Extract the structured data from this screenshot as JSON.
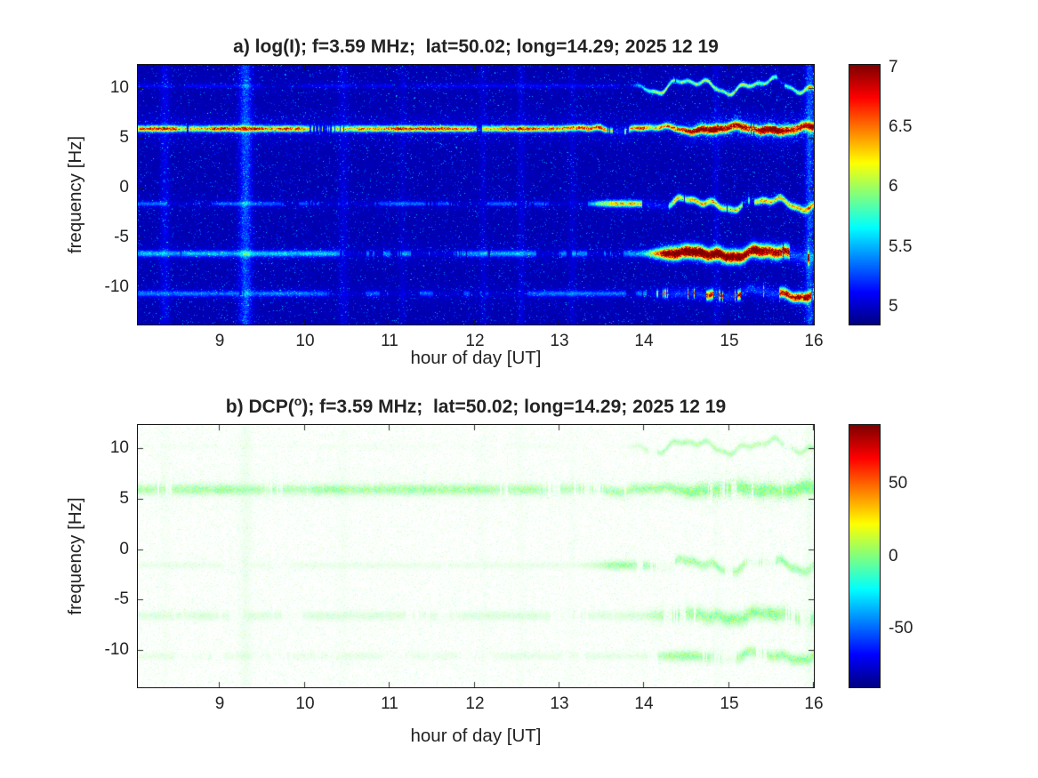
{
  "figure": {
    "kind": "dual-panel radio spectrogram",
    "text_color": "#232323",
    "background": "#ffffff",
    "colormap": "jet"
  },
  "chart_data": [
    {
      "type": "heatmap",
      "panel": "a",
      "title": "a) log(I); f=3.59 MHz;  lat=50.02; long=14.29; 2025 12 19",
      "title_prefix": "a) log(I); f=3.59 MHz;  lat=50.02; long=14.29; 2025 12 19",
      "title_sup": "",
      "title_suffix": "",
      "xlabel": "hour of day [UT]",
      "ylabel": "frequency [Hz]",
      "xlim": [
        8.03,
        16
      ],
      "ylim": [
        -13.7,
        12.3
      ],
      "xticks": [
        9,
        10,
        11,
        12,
        13,
        14,
        15,
        16
      ],
      "yticks": [
        10,
        5,
        0,
        -5,
        -10
      ],
      "grid": false,
      "colormap": "jet",
      "render_mode": "intensity",
      "seed": 20251219,
      "base_value": 4.93,
      "colorbar": {
        "min": 4.85,
        "max": 7.02,
        "ticks": [
          7,
          6.5,
          6,
          5.5,
          5
        ],
        "position": "right"
      },
      "spectral_lines": [
        {
          "f": 5.9,
          "amp": 1.3,
          "amp_late": 1.85,
          "late_start": 14.3,
          "sigma": 0.2,
          "sigma_late": 0.3,
          "wobble": 0.2,
          "wobble_start": 13.0,
          "halo_amp": 0.3,
          "halo_sigma": 0.9,
          "patchiness": 0.12,
          "note": "strong continuous carrier line near +6 Hz, yellow-orange, turns red and wavy after ~14:30 UT"
        },
        {
          "f": 10.2,
          "amp": 0.12,
          "amp_late": 0.85,
          "late_start": 13.7,
          "sigma": 0.13,
          "sigma_late": 0.15,
          "wobble": 0.55,
          "wobble_start": 13.7,
          "halo_amp": 0.06,
          "halo_sigma": 0.5,
          "patchiness": 0.45,
          "note": "faint wavy trace near +10 Hz appearing after ~13:45 UT"
        },
        {
          "f": -1.6,
          "amp": 0.3,
          "amp_late": 1.05,
          "late_start": 13.2,
          "sigma": 0.16,
          "sigma_late": 0.22,
          "wobble": 0.45,
          "wobble_start": 14.0,
          "halo_amp": 0.1,
          "halo_sigma": 0.6,
          "patchiness": 0.5,
          "note": "weak dotted line near -1.5 Hz, strengthens and undulates after ~13 UT"
        },
        {
          "f": -6.6,
          "amp": 0.45,
          "amp_late": 2.05,
          "late_start": 13.9,
          "sigma": 0.22,
          "sigma_late": 0.42,
          "wobble": 0.3,
          "wobble_start": 14.3,
          "halo_amp": 0.12,
          "halo_sigma": 0.8,
          "patchiness": 0.45,
          "note": "dotted line near -6.5 Hz, becomes broad intense red band after ~14 UT"
        },
        {
          "f": -10.6,
          "amp": 0.32,
          "amp_late": 1.75,
          "late_start": 13.9,
          "sigma": 0.2,
          "sigma_late": 0.32,
          "wobble": 0.32,
          "wobble_start": 14.5,
          "halo_amp": 0.1,
          "halo_sigma": 0.7,
          "patchiness": 0.5,
          "note": "faint line near -10.5 Hz, intensifies to red-orange after ~14 UT"
        }
      ],
      "vertical_stripes": [
        {
          "hour": 9.3,
          "amp": 0.5,
          "width": 0.05
        },
        {
          "hour": 8.35,
          "amp": 0.18,
          "width": 0.04
        },
        {
          "hour": 10.45,
          "amp": 0.13,
          "width": 0.04
        },
        {
          "hour": 11.15,
          "amp": 0.08,
          "width": 0.03
        },
        {
          "hour": 12.1,
          "amp": 0.1,
          "width": 0.03
        },
        {
          "hour": 12.55,
          "amp": 0.13,
          "width": 0.03
        },
        {
          "hour": 13.15,
          "amp": 0.1,
          "width": 0.03
        },
        {
          "hour": 14.85,
          "amp": 0.12,
          "width": 0.03
        },
        {
          "hour": 15.95,
          "amp": 0.5,
          "width": 0.035
        }
      ]
    },
    {
      "type": "heatmap",
      "panel": "b",
      "title": "b) DCP(o); f=3.59 MHz;  lat=50.02; long=14.29; 2025 12 19",
      "title_prefix": "b) DCP(",
      "title_sup": "o",
      "title_suffix": "); f=3.59 MHz;  lat=50.02; long=14.29; 2025 12 19",
      "xlabel": "hour of day [UT]",
      "ylabel": "frequency [Hz]",
      "xlim": [
        8.03,
        16
      ],
      "ylim": [
        -13.7,
        12.3
      ],
      "xticks": [
        9,
        10,
        11,
        12,
        13,
        14,
        15,
        16
      ],
      "yticks": [
        10,
        5,
        0,
        -5,
        -10
      ],
      "grid": false,
      "colormap": "jet",
      "render_mode": "phase",
      "seed": 1219,
      "noise_density": 0.3,
      "colorbar": {
        "min": -90,
        "max": 90,
        "ticks": [
          50,
          0,
          -50
        ],
        "position": "right"
      },
      "spectral_lines": [
        {
          "f": 5.9,
          "amp": 0.5,
          "amp_late": 0.75,
          "late_start": 14.3,
          "sigma": 0.35,
          "sigma_late": 0.45,
          "wobble": 0.18,
          "wobble_start": 13.0,
          "halo_amp": 0.3,
          "halo_sigma": 1.1,
          "patchiness": 0.1,
          "note": "dense pale-green band near +6 Hz across whole interval, DCP near 0 deg"
        },
        {
          "f": 10.2,
          "amp": 0.04,
          "amp_late": 0.4,
          "late_start": 13.7,
          "sigma": 0.18,
          "sigma_late": 0.2,
          "wobble": 0.5,
          "wobble_start": 13.7,
          "halo_amp": 0.05,
          "halo_sigma": 0.5,
          "patchiness": 0.4,
          "note": "faint wavy green trace near +10 Hz after ~13:45 UT"
        },
        {
          "f": -1.6,
          "amp": 0.1,
          "amp_late": 0.5,
          "late_start": 13.2,
          "sigma": 0.22,
          "sigma_late": 0.3,
          "wobble": 0.45,
          "wobble_start": 14.0,
          "halo_amp": 0.08,
          "halo_sigma": 0.7,
          "patchiness": 0.45,
          "note": "weak green line near -1.5 Hz, undulating after ~14 UT"
        },
        {
          "f": -6.6,
          "amp": 0.18,
          "amp_late": 0.6,
          "late_start": 13.9,
          "sigma": 0.3,
          "sigma_late": 0.45,
          "wobble": 0.3,
          "wobble_start": 14.3,
          "halo_amp": 0.1,
          "halo_sigma": 0.9,
          "patchiness": 0.4,
          "note": "green line near -6.5 Hz, denser after ~14 UT"
        },
        {
          "f": -10.6,
          "amp": 0.12,
          "amp_late": 0.55,
          "late_start": 13.9,
          "sigma": 0.25,
          "sigma_late": 0.35,
          "wobble": 0.3,
          "wobble_start": 14.5,
          "halo_amp": 0.08,
          "halo_sigma": 0.8,
          "patchiness": 0.45,
          "note": "faint green line near -10.5 Hz, denser after ~14 UT"
        }
      ],
      "vertical_stripes": [
        {
          "hour": 9.3,
          "amp": 0.14,
          "width": 0.05
        },
        {
          "hour": 8.35,
          "amp": 0.05,
          "width": 0.04
        },
        {
          "hour": 10.45,
          "amp": 0.05,
          "width": 0.04
        },
        {
          "hour": 12.1,
          "amp": 0.04,
          "width": 0.03
        },
        {
          "hour": 12.55,
          "amp": 0.05,
          "width": 0.03
        },
        {
          "hour": 13.15,
          "amp": 0.04,
          "width": 0.03
        },
        {
          "hour": 14.85,
          "amp": 0.05,
          "width": 0.03
        },
        {
          "hour": 15.95,
          "amp": 0.12,
          "width": 0.04
        }
      ]
    }
  ]
}
